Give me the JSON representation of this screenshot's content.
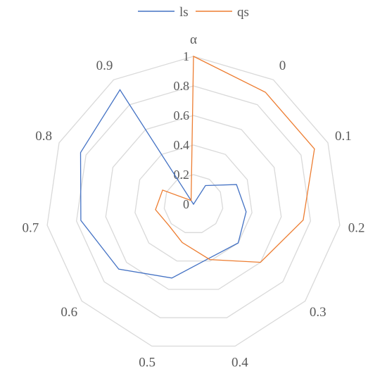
{
  "chart_data": {
    "type": "radar",
    "categories": [
      "α",
      "0",
      "0.1",
      "0.2",
      "0.3",
      "0.4",
      "0.5",
      "0.6",
      "0.7",
      "0.8",
      "0.9"
    ],
    "radial_ticks": [
      "0",
      "0.2",
      "0.4",
      "0.6",
      "0.8",
      "1"
    ],
    "rmin": 0,
    "rmax": 1,
    "grid": true,
    "legend": "top-center",
    "series": [
      {
        "name": "ls",
        "color": "#4472c4",
        "values": [
          0.0,
          0.15,
          0.32,
          0.36,
          0.4,
          0.38,
          0.52,
          0.67,
          0.77,
          0.84,
          0.92
        ]
      },
      {
        "name": "qs",
        "color": "#ed7d31",
        "values": [
          1.0,
          0.9,
          0.9,
          0.75,
          0.6,
          0.39,
          0.27,
          0.22,
          0.26,
          0.23,
          0.03
        ]
      }
    ]
  },
  "colors": {
    "grid": "#d9d9d9",
    "text": "#595959"
  }
}
